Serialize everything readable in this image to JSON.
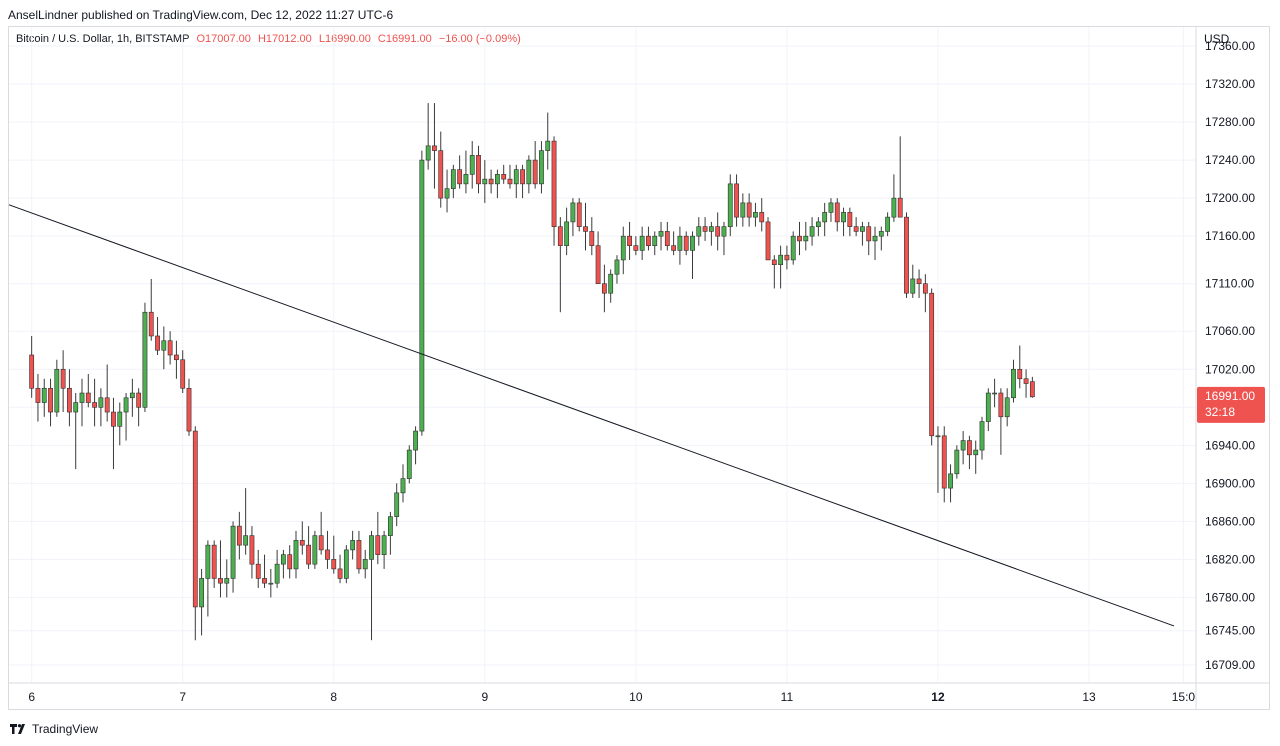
{
  "header": {
    "publisher_line": "AnselLindner published on TradingView.com, Dec 12, 2022 11:27 UTC-6"
  },
  "legend": {
    "symbol": "Bitcoin / U.S. Dollar, 1h, BITSTAMP",
    "open": "O17007.00",
    "high": "H17012.00",
    "low": "L16990.00",
    "close": "C16991.00",
    "change": "−16.00 (−0.09%)"
  },
  "axis": {
    "currency": "USD",
    "price_badge": "16991.00",
    "countdown": "32:18"
  },
  "footer": {
    "brand": "TradingView"
  },
  "colors": {
    "up": "#4caf50",
    "down": "#ef5350",
    "trendline": "#131722",
    "grid": "#f0f3fa",
    "badge": "#ef5350"
  },
  "chart_data": {
    "type": "candlestick",
    "title": "Bitcoin / U.S. Dollar, 1h, BITSTAMP",
    "xlabel": "",
    "ylabel": "USD",
    "ylim": [
      16690,
      17380
    ],
    "grid": true,
    "y_ticks": [
      {
        "value": 17360,
        "label": "17360.00"
      },
      {
        "value": 17320,
        "label": "17320.00"
      },
      {
        "value": 17280,
        "label": "17280.00"
      },
      {
        "value": 17240,
        "label": "17240.00"
      },
      {
        "value": 17200,
        "label": "17200.00"
      },
      {
        "value": 17160,
        "label": "17160.00"
      },
      {
        "value": 17110,
        "label": "17110.00"
      },
      {
        "value": 17060,
        "label": "17060.00"
      },
      {
        "value": 17020,
        "label": "17020.00"
      },
      {
        "value": 16980,
        "label": "16980.00"
      },
      {
        "value": 16940,
        "label": "16940.00"
      },
      {
        "value": 16900,
        "label": "16900.00"
      },
      {
        "value": 16860,
        "label": "16860.00"
      },
      {
        "value": 16820,
        "label": "16820.00"
      },
      {
        "value": 16780,
        "label": "16780.00"
      },
      {
        "value": 16745,
        "label": "16745.00"
      },
      {
        "value": 16709,
        "label": "16709.00"
      }
    ],
    "x_ticks": [
      {
        "label": "6",
        "hour": 0,
        "bold": false
      },
      {
        "label": "7",
        "hour": 24,
        "bold": false
      },
      {
        "label": "8",
        "hour": 48,
        "bold": false
      },
      {
        "label": "9",
        "hour": 72,
        "bold": false
      },
      {
        "label": "10",
        "hour": 96,
        "bold": false
      },
      {
        "label": "11",
        "hour": 120,
        "bold": false
      },
      {
        "label": "12",
        "hour": 144,
        "bold": true
      },
      {
        "label": "13",
        "hour": 168,
        "bold": false
      },
      {
        "label": "15:0",
        "hour": 183,
        "bold": false
      }
    ],
    "x_range_hours": [
      -3.6,
      185
    ],
    "candles_ohlc": [
      [
        17035,
        17055,
        16990,
        17000
      ],
      [
        17000,
        17015,
        16965,
        16985
      ],
      [
        16985,
        17010,
        16970,
        17000
      ],
      [
        17000,
        17010,
        16960,
        16975
      ],
      [
        16975,
        17030,
        16970,
        17020
      ],
      [
        17020,
        17040,
        16975,
        17000
      ],
      [
        17000,
        17020,
        16960,
        16975
      ],
      [
        16975,
        16995,
        16915,
        16985
      ],
      [
        16985,
        17010,
        16960,
        16995
      ],
      [
        16995,
        17015,
        16980,
        16985
      ],
      [
        16985,
        17010,
        16960,
        16980
      ],
      [
        16980,
        17000,
        16960,
        16990
      ],
      [
        16990,
        17025,
        16965,
        16975
      ],
      [
        16975,
        16990,
        16915,
        16960
      ],
      [
        16960,
        16985,
        16940,
        16975
      ],
      [
        16975,
        16995,
        16945,
        16990
      ],
      [
        16990,
        17010,
        16970,
        16995
      ],
      [
        16995,
        17000,
        16960,
        16980
      ],
      [
        16980,
        17090,
        16975,
        17080
      ],
      [
        17080,
        17115,
        17050,
        17055
      ],
      [
        17055,
        17075,
        17035,
        17040
      ],
      [
        17040,
        17065,
        17020,
        17050
      ],
      [
        17050,
        17060,
        17025,
        17035
      ],
      [
        17035,
        17050,
        17010,
        17030
      ],
      [
        17030,
        17040,
        16995,
        17000
      ],
      [
        17000,
        17010,
        16950,
        16955
      ],
      [
        16955,
        16960,
        16735,
        16770
      ],
      [
        16770,
        16810,
        16740,
        16800
      ],
      [
        16800,
        16840,
        16760,
        16835
      ],
      [
        16835,
        16840,
        16790,
        16800
      ],
      [
        16800,
        16840,
        16780,
        16795
      ],
      [
        16795,
        16820,
        16780,
        16800
      ],
      [
        16800,
        16860,
        16785,
        16855
      ],
      [
        16855,
        16870,
        16820,
        16835
      ],
      [
        16835,
        16895,
        16825,
        16845
      ],
      [
        16845,
        16855,
        16800,
        16815
      ],
      [
        16815,
        16830,
        16790,
        16800
      ],
      [
        16800,
        16825,
        16790,
        16795
      ],
      [
        16795,
        16810,
        16780,
        16795
      ],
      [
        16795,
        16830,
        16790,
        16815
      ],
      [
        16815,
        16830,
        16800,
        16825
      ],
      [
        16825,
        16835,
        16800,
        16810
      ],
      [
        16810,
        16850,
        16800,
        16840
      ],
      [
        16840,
        16860,
        16825,
        16835
      ],
      [
        16835,
        16855,
        16810,
        16815
      ],
      [
        16815,
        16850,
        16810,
        16845
      ],
      [
        16845,
        16870,
        16825,
        16830
      ],
      [
        16830,
        16850,
        16810,
        16820
      ],
      [
        16820,
        16845,
        16805,
        16810
      ],
      [
        16810,
        16825,
        16795,
        16800
      ],
      [
        16800,
        16835,
        16795,
        16830
      ],
      [
        16830,
        16850,
        16820,
        16840
      ],
      [
        16840,
        16850,
        16805,
        16810
      ],
      [
        16810,
        16830,
        16800,
        16820
      ],
      [
        16820,
        16850,
        16735,
        16845
      ],
      [
        16845,
        16870,
        16815,
        16825
      ],
      [
        16825,
        16850,
        16810,
        16845
      ],
      [
        16845,
        16870,
        16825,
        16865
      ],
      [
        16865,
        16900,
        16855,
        16890
      ],
      [
        16890,
        16920,
        16880,
        16905
      ],
      [
        16905,
        16940,
        16900,
        16935
      ],
      [
        16935,
        16960,
        16920,
        16955
      ],
      [
        16955,
        17250,
        16950,
        17240
      ],
      [
        17240,
        17300,
        17230,
        17255
      ],
      [
        17255,
        17300,
        17210,
        17250
      ],
      [
        17250,
        17270,
        17190,
        17200
      ],
      [
        17200,
        17230,
        17185,
        17210
      ],
      [
        17210,
        17235,
        17200,
        17230
      ],
      [
        17230,
        17245,
        17210,
        17215
      ],
      [
        17215,
        17250,
        17205,
        17225
      ],
      [
        17225,
        17260,
        17210,
        17245
      ],
      [
        17245,
        17255,
        17205,
        17215
      ],
      [
        17215,
        17240,
        17195,
        17220
      ],
      [
        17220,
        17230,
        17205,
        17215
      ],
      [
        17215,
        17230,
        17200,
        17225
      ],
      [
        17225,
        17235,
        17215,
        17220
      ],
      [
        17220,
        17235,
        17210,
        17215
      ],
      [
        17215,
        17235,
        17200,
        17230
      ],
      [
        17230,
        17235,
        17200,
        17215
      ],
      [
        17215,
        17245,
        17205,
        17240
      ],
      [
        17240,
        17260,
        17210,
        17215
      ],
      [
        17215,
        17260,
        17205,
        17250
      ],
      [
        17250,
        17290,
        17230,
        17260
      ],
      [
        17260,
        17265,
        17150,
        17170
      ],
      [
        17170,
        17180,
        17080,
        17150
      ],
      [
        17150,
        17190,
        17140,
        17175
      ],
      [
        17175,
        17200,
        17160,
        17195
      ],
      [
        17195,
        17200,
        17165,
        17170
      ],
      [
        17170,
        17195,
        17145,
        17165
      ],
      [
        17165,
        17180,
        17140,
        17150
      ],
      [
        17150,
        17165,
        17110,
        17110
      ],
      [
        17110,
        17130,
        17080,
        17100
      ],
      [
        17100,
        17125,
        17090,
        17120
      ],
      [
        17120,
        17140,
        17110,
        17135
      ],
      [
        17135,
        17170,
        17120,
        17160
      ],
      [
        17160,
        17175,
        17135,
        17150
      ],
      [
        17150,
        17160,
        17140,
        17145
      ],
      [
        17145,
        17170,
        17135,
        17160
      ],
      [
        17160,
        17170,
        17145,
        17150
      ],
      [
        17150,
        17165,
        17140,
        17160
      ],
      [
        17160,
        17175,
        17145,
        17165
      ],
      [
        17165,
        17175,
        17145,
        17150
      ],
      [
        17150,
        17165,
        17140,
        17145
      ],
      [
        17145,
        17170,
        17130,
        17160
      ],
      [
        17160,
        17165,
        17140,
        17145
      ],
      [
        17145,
        17165,
        17115,
        17160
      ],
      [
        17160,
        17180,
        17150,
        17170
      ],
      [
        17170,
        17180,
        17155,
        17165
      ],
      [
        17165,
        17175,
        17150,
        17170
      ],
      [
        17170,
        17185,
        17145,
        17160
      ],
      [
        17160,
        17175,
        17140,
        17170
      ],
      [
        17170,
        17225,
        17160,
        17215
      ],
      [
        17215,
        17225,
        17170,
        17180
      ],
      [
        17180,
        17205,
        17170,
        17195
      ],
      [
        17195,
        17205,
        17170,
        17180
      ],
      [
        17180,
        17195,
        17170,
        17185
      ],
      [
        17185,
        17200,
        17165,
        17175
      ],
      [
        17175,
        17180,
        17135,
        17135
      ],
      [
        17135,
        17140,
        17105,
        17130
      ],
      [
        17130,
        17150,
        17105,
        17140
      ],
      [
        17140,
        17150,
        17125,
        17135
      ],
      [
        17135,
        17165,
        17130,
        17160
      ],
      [
        17160,
        17175,
        17140,
        17155
      ],
      [
        17155,
        17175,
        17145,
        17160
      ],
      [
        17160,
        17180,
        17150,
        17170
      ],
      [
        17170,
        17180,
        17160,
        17175
      ],
      [
        17175,
        17195,
        17160,
        17185
      ],
      [
        17185,
        17200,
        17175,
        17195
      ],
      [
        17195,
        17200,
        17165,
        17175
      ],
      [
        17175,
        17190,
        17160,
        17185
      ],
      [
        17185,
        17190,
        17160,
        17170
      ],
      [
        17170,
        17180,
        17160,
        17165
      ],
      [
        17165,
        17175,
        17150,
        17170
      ],
      [
        17170,
        17175,
        17140,
        17155
      ],
      [
        17155,
        17170,
        17135,
        17160
      ],
      [
        17160,
        17170,
        17145,
        17165
      ],
      [
        17165,
        17185,
        17160,
        17180
      ],
      [
        17180,
        17225,
        17175,
        17200
      ],
      [
        17200,
        17265,
        17190,
        17180
      ],
      [
        17180,
        17185,
        17095,
        17100
      ],
      [
        17100,
        17130,
        17095,
        17115
      ],
      [
        17115,
        17125,
        17095,
        17110
      ],
      [
        17110,
        17120,
        17080,
        17100
      ],
      [
        17100,
        17105,
        16940,
        16950
      ],
      [
        16950,
        16960,
        16890,
        16950
      ],
      [
        16950,
        16960,
        16880,
        16895
      ],
      [
        16895,
        16920,
        16880,
        16910
      ],
      [
        16910,
        16940,
        16905,
        16935
      ],
      [
        16935,
        16955,
        16920,
        16945
      ],
      [
        16945,
        16950,
        16915,
        16930
      ],
      [
        16930,
        16945,
        16910,
        16935
      ],
      [
        16935,
        16970,
        16925,
        16965
      ],
      [
        16965,
        17000,
        16955,
        16995
      ],
      [
        16995,
        17010,
        16980,
        16995
      ],
      [
        16995,
        17000,
        16930,
        16970
      ],
      [
        16970,
        17000,
        16960,
        16990
      ],
      [
        16990,
        17030,
        16985,
        17020
      ],
      [
        17020,
        17045,
        17000,
        17010
      ],
      [
        17010,
        17020,
        16990,
        17005
      ],
      [
        17007,
        17012,
        16990,
        16991
      ]
    ],
    "trendline": {
      "from": {
        "hour": -3.6,
        "price": 17193
      },
      "to": {
        "hour": 181.5,
        "price": 16750
      }
    }
  }
}
